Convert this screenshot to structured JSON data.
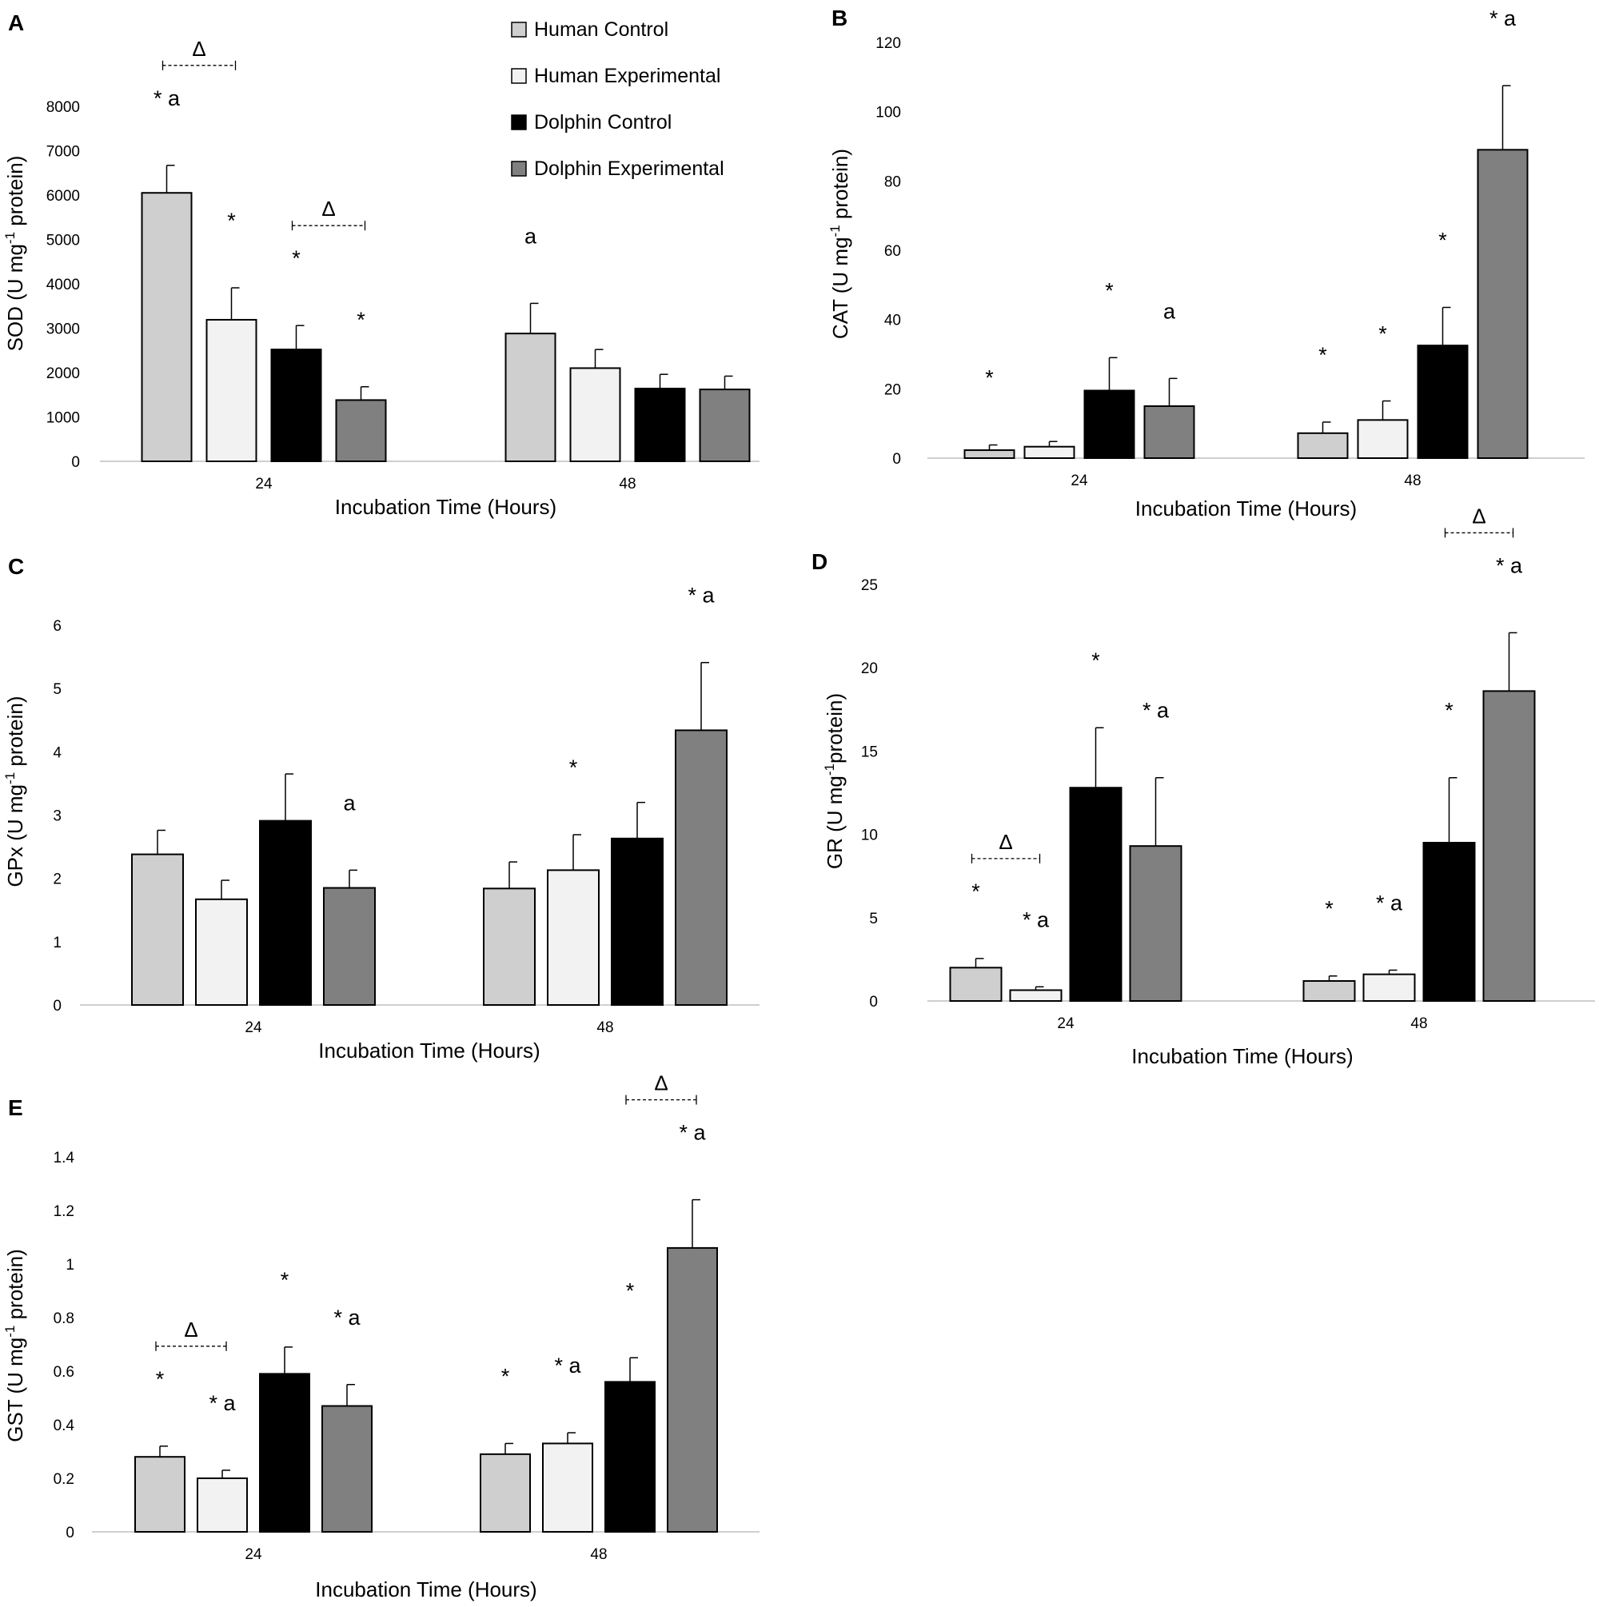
{
  "legend": {
    "items": [
      {
        "label": "Human Control",
        "color": "#cfcfcf"
      },
      {
        "label": "Human Experimental",
        "color": "#f2f2f2"
      },
      {
        "label": "Dolphin Control",
        "color": "#000000"
      },
      {
        "label": "Dolphin Experimental",
        "color": "#808080"
      }
    ]
  },
  "chart_data": [
    {
      "panel": "A",
      "type": "bar",
      "xlabel": "Incubation Time (Hours)",
      "ylabel_main": "SOD (U mg",
      "ylabel_sup": "-1",
      "ylabel_end": " protein)",
      "ylim": [
        0,
        8000
      ],
      "yticks": [
        "0",
        "1000",
        "2000",
        "3000",
        "4000",
        "5000",
        "6000",
        "7000",
        "8000"
      ],
      "ytick_values": [
        0,
        1000,
        2000,
        3000,
        4000,
        5000,
        6000,
        7000,
        8000
      ],
      "categories": [
        "24",
        "48"
      ],
      "series": [
        {
          "name": "Human Control",
          "values": [
            6050,
            2880
          ],
          "errors": [
            620,
            680
          ]
        },
        {
          "name": "Human Experimental",
          "values": [
            3190,
            2100
          ],
          "errors": [
            720,
            420
          ]
        },
        {
          "name": "Dolphin Control",
          "values": [
            2520,
            1640
          ],
          "errors": [
            540,
            320
          ]
        },
        {
          "name": "Dolphin Experimental",
          "values": [
            1380,
            1620
          ],
          "errors": [
            300,
            300
          ]
        }
      ],
      "annotations": [
        {
          "cat": 0,
          "series": 0,
          "text": "* a"
        },
        {
          "cat": 0,
          "series": 1,
          "text": "*"
        },
        {
          "cat": 0,
          "series": 2,
          "text": "*"
        },
        {
          "cat": 0,
          "series": 3,
          "text": "*"
        },
        {
          "cat": 1,
          "series": 0,
          "text": "a"
        }
      ],
      "deltas": [
        {
          "cat": 0,
          "from": 0,
          "to": 1,
          "symbol": "Δ"
        },
        {
          "cat": 0,
          "from": 2,
          "to": 3,
          "symbol": "Δ"
        }
      ]
    },
    {
      "panel": "B",
      "type": "bar",
      "xlabel": "Incubation Time (Hours)",
      "ylabel_main": "CAT (U mg",
      "ylabel_sup": "-1",
      "ylabel_end": " protein)",
      "ylim": [
        0,
        120
      ],
      "yticks": [
        "0",
        "20",
        "40",
        "60",
        "80",
        "100",
        "120"
      ],
      "ytick_values": [
        0,
        20,
        40,
        60,
        80,
        100,
        120
      ],
      "categories": [
        "24",
        "48"
      ],
      "series": [
        {
          "name": "Human Control",
          "values": [
            2.3,
            7.2
          ],
          "errors": [
            1.5,
            3.2
          ]
        },
        {
          "name": "Human Experimental",
          "values": [
            3.3,
            11
          ],
          "errors": [
            1.5,
            5.5
          ]
        },
        {
          "name": "Dolphin Control",
          "values": [
            19.5,
            32.5
          ],
          "errors": [
            9.5,
            11
          ]
        },
        {
          "name": "Dolphin Experimental",
          "values": [
            15,
            89
          ],
          "errors": [
            8,
            18.5
          ]
        }
      ],
      "annotations": [
        {
          "cat": 0,
          "series": 0,
          "text": "*"
        },
        {
          "cat": 0,
          "series": 2,
          "text": "*"
        },
        {
          "cat": 0,
          "series": 3,
          "text": "a"
        },
        {
          "cat": 1,
          "series": 0,
          "text": "*"
        },
        {
          "cat": 1,
          "series": 1,
          "text": "*"
        },
        {
          "cat": 1,
          "series": 2,
          "text": "*"
        },
        {
          "cat": 1,
          "series": 3,
          "text": "* a"
        }
      ],
      "deltas": [
        {
          "cat": 1,
          "from": 2,
          "to": 3,
          "symbol": "Δ"
        }
      ]
    },
    {
      "panel": "C",
      "type": "bar",
      "xlabel": "Incubation Time (Hours)",
      "ylabel_main": "GPx (U mg",
      "ylabel_sup": "-1",
      "ylabel_end": " protein)",
      "ylim": [
        0,
        6
      ],
      "yticks": [
        "0",
        "1",
        "2",
        "3",
        "4",
        "5",
        "6"
      ],
      "ytick_values": [
        0,
        1,
        2,
        3,
        4,
        5,
        6
      ],
      "categories": [
        "24",
        "48"
      ],
      "series": [
        {
          "name": "Human Control",
          "values": [
            2.38,
            1.84
          ],
          "errors": [
            0.38,
            0.42
          ]
        },
        {
          "name": "Human Experimental",
          "values": [
            1.67,
            2.13
          ],
          "errors": [
            0.3,
            0.56
          ]
        },
        {
          "name": "Dolphin Control",
          "values": [
            2.91,
            2.63
          ],
          "errors": [
            0.74,
            0.57
          ]
        },
        {
          "name": "Dolphin Experimental",
          "values": [
            1.85,
            4.34
          ],
          "errors": [
            0.28,
            1.07
          ]
        }
      ],
      "annotations": [
        {
          "cat": 0,
          "series": 3,
          "text": "a"
        },
        {
          "cat": 1,
          "series": 1,
          "text": "*"
        },
        {
          "cat": 1,
          "series": 3,
          "text": "* a"
        }
      ],
      "deltas": []
    },
    {
      "panel": "D",
      "type": "bar",
      "xlabel": "Incubation Time (Hours)",
      "ylabel_main": "GR (U mg",
      "ylabel_sup": "-1",
      "ylabel_end": "protein)",
      "ylim": [
        0,
        25
      ],
      "yticks": [
        "0",
        "5",
        "10",
        "15",
        "20",
        "25"
      ],
      "ytick_values": [
        0,
        5,
        10,
        15,
        20,
        25
      ],
      "categories": [
        "24",
        "48"
      ],
      "series": [
        {
          "name": "Human Control",
          "values": [
            2.0,
            1.2
          ],
          "errors": [
            0.55,
            0.3
          ]
        },
        {
          "name": "Human Experimental",
          "values": [
            0.65,
            1.6
          ],
          "errors": [
            0.2,
            0.25
          ]
        },
        {
          "name": "Dolphin Control",
          "values": [
            12.8,
            9.5
          ],
          "errors": [
            3.6,
            3.9
          ]
        },
        {
          "name": "Dolphin Experimental",
          "values": [
            9.3,
            18.6
          ],
          "errors": [
            4.1,
            3.5
          ]
        }
      ],
      "annotations": [
        {
          "cat": 0,
          "series": 0,
          "text": "*"
        },
        {
          "cat": 0,
          "series": 1,
          "text": "* a"
        },
        {
          "cat": 0,
          "series": 2,
          "text": "*"
        },
        {
          "cat": 0,
          "series": 3,
          "text": "* a"
        },
        {
          "cat": 1,
          "series": 0,
          "text": "*"
        },
        {
          "cat": 1,
          "series": 1,
          "text": "* a"
        },
        {
          "cat": 1,
          "series": 2,
          "text": "*"
        },
        {
          "cat": 1,
          "series": 3,
          "text": "* a"
        }
      ],
      "deltas": [
        {
          "cat": 0,
          "from": 0,
          "to": 1,
          "symbol": "Δ"
        },
        {
          "cat": 1,
          "from": 2,
          "to": 3,
          "symbol": "Δ"
        }
      ]
    },
    {
      "panel": "E",
      "type": "bar",
      "xlabel": "Incubation Time (Hours)",
      "ylabel_main": "GST (U mg",
      "ylabel_sup": "-1",
      "ylabel_end": " protein)",
      "ylim": [
        0,
        1.4
      ],
      "yticks": [
        "0",
        "0.2",
        "0.4",
        "0.6",
        "0.8",
        "1",
        "1.2",
        "1.4"
      ],
      "ytick_values": [
        0,
        0.2,
        0.4,
        0.6,
        0.8,
        1.0,
        1.2,
        1.4
      ],
      "categories": [
        "24",
        "48"
      ],
      "series": [
        {
          "name": "Human Control",
          "values": [
            0.28,
            0.29
          ],
          "errors": [
            0.04,
            0.04
          ]
        },
        {
          "name": "Human Experimental",
          "values": [
            0.2,
            0.33
          ],
          "errors": [
            0.03,
            0.04
          ]
        },
        {
          "name": "Dolphin Control",
          "values": [
            0.59,
            0.56
          ],
          "errors": [
            0.1,
            0.09
          ]
        },
        {
          "name": "Dolphin Experimental",
          "values": [
            0.47,
            1.06
          ],
          "errors": [
            0.08,
            0.18
          ]
        }
      ],
      "annotations": [
        {
          "cat": 0,
          "series": 0,
          "text": "*"
        },
        {
          "cat": 0,
          "series": 1,
          "text": "* a"
        },
        {
          "cat": 0,
          "series": 2,
          "text": "*"
        },
        {
          "cat": 0,
          "series": 3,
          "text": "* a"
        },
        {
          "cat": 1,
          "series": 0,
          "text": "*"
        },
        {
          "cat": 1,
          "series": 1,
          "text": "* a"
        },
        {
          "cat": 1,
          "series": 2,
          "text": "*"
        },
        {
          "cat": 1,
          "series": 3,
          "text": "* a"
        }
      ],
      "deltas": [
        {
          "cat": 0,
          "from": 0,
          "to": 1,
          "symbol": "Δ"
        },
        {
          "cat": 1,
          "from": 2,
          "to": 3,
          "symbol": "Δ"
        }
      ]
    }
  ]
}
